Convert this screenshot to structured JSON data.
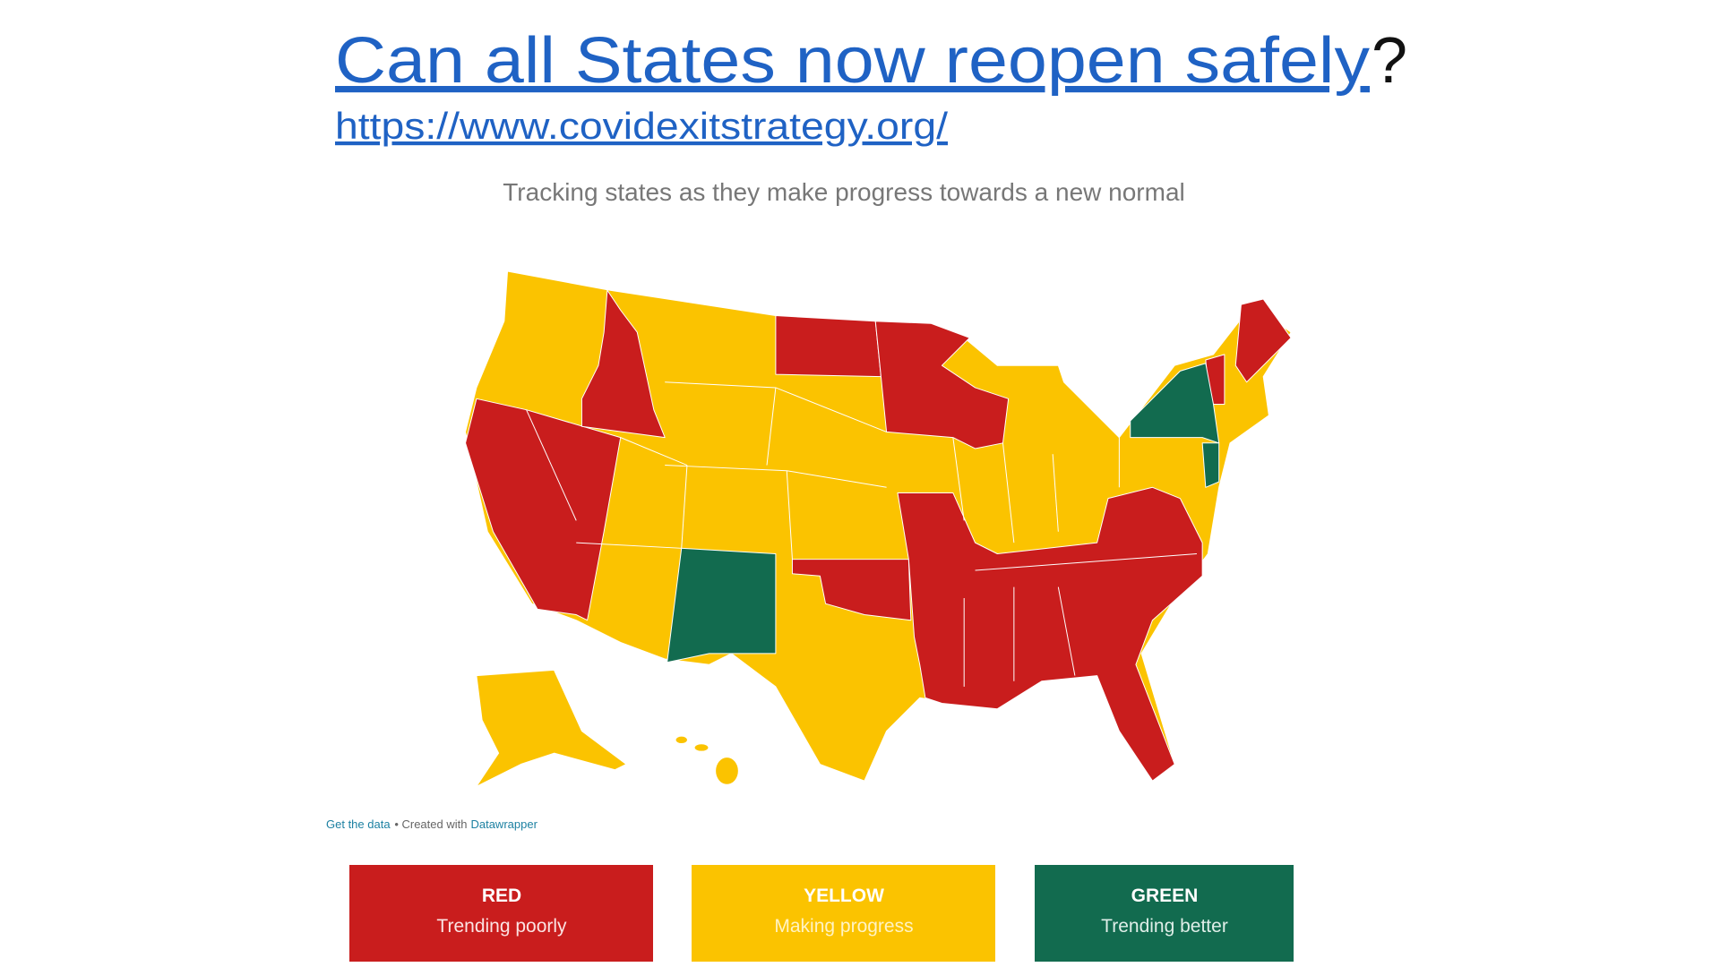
{
  "header": {
    "title": "Can all States now reopen safely",
    "title_end": "?",
    "url": "https://www.covidexitstrategy.org/"
  },
  "map": {
    "subtitle": "Tracking states as they make progress towards a new normal",
    "credits": {
      "get_data": "Get the data",
      "created_with": "• Created with",
      "tool": "Datawrapper"
    }
  },
  "legend": [
    {
      "label": "RED",
      "description": "Trending poorly"
    },
    {
      "label": "YELLOW",
      "description": "Making progress"
    },
    {
      "label": "GREEN",
      "description": "Trending better"
    }
  ]
}
